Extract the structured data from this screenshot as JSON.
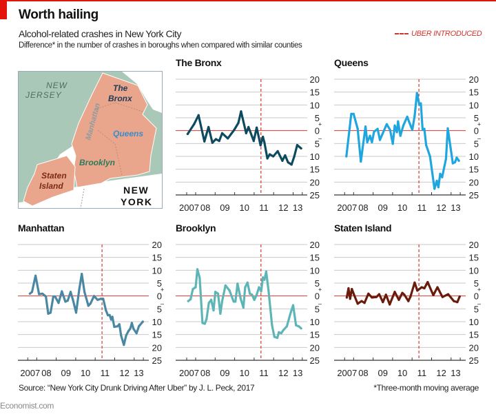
{
  "header": {
    "title": "Worth hailing",
    "subtitle": "Alcohol-related crashes in New York City",
    "description": "Difference* in the number of crashes in boroughs when compared with similar counties",
    "legend_label": "UBER INTRODUCED"
  },
  "map": {
    "new_jersey_1": "NEW",
    "new_jersey_2": "JERSEY",
    "bronx_1": "The",
    "bronx_2": "Bronx",
    "manhattan": "Manhattan",
    "queens": "Queens",
    "brooklyn": "Brooklyn",
    "staten_1": "Staten",
    "staten_2": "Island",
    "new_york_1": "NEW",
    "new_york_2": "YORK"
  },
  "footer": {
    "source": "Source: “New York City Drunk Driving After Uber” by J. L. Peck, 2017",
    "note": "*Three-month moving average",
    "brand": "Economist.com"
  },
  "colors": {
    "accent": "#e3120b",
    "uber_line": "#d9342b",
    "grid": "#c9c9c9"
  },
  "chart_data": [
    {
      "type": "line",
      "title": "The Bronx",
      "color": "#0e4a5f",
      "ylim": [
        -25,
        20
      ],
      "yticks": [
        20,
        15,
        10,
        5,
        0,
        -5,
        -10,
        -15,
        -20,
        -25
      ],
      "ytick_labels": [
        "20",
        "15",
        "10",
        "5",
        "0",
        "5",
        "10",
        "15",
        "20",
        "25"
      ],
      "xtick_labels": [
        "2007",
        "08",
        "09",
        "10",
        "11",
        "12",
        "13"
      ],
      "xlim": [
        2007.54,
        2013.47
      ],
      "uber_introduced": 2011.35,
      "points": [
        [
          2007.59,
          -1.3
        ],
        [
          2007.92,
          2.5
        ],
        [
          2008.15,
          6
        ],
        [
          2008.45,
          -4.2
        ],
        [
          2008.66,
          1.4
        ],
        [
          2008.86,
          -4.7
        ],
        [
          2009.04,
          -3.3
        ],
        [
          2009.21,
          -4
        ],
        [
          2009.36,
          -1
        ],
        [
          2009.65,
          -3
        ],
        [
          2009.98,
          0.3
        ],
        [
          2010.19,
          3
        ],
        [
          2010.33,
          7.5
        ],
        [
          2010.59,
          -1
        ],
        [
          2010.71,
          1.4
        ],
        [
          2010.98,
          -4
        ],
        [
          2011.13,
          1.2
        ],
        [
          2011.33,
          -5.7
        ],
        [
          2011.45,
          -2.4
        ],
        [
          2011.53,
          -4.7
        ],
        [
          2011.68,
          -10.8
        ],
        [
          2011.8,
          -9.2
        ],
        [
          2011.98,
          -10
        ],
        [
          2012.21,
          -8
        ],
        [
          2012.45,
          -11.7
        ],
        [
          2012.59,
          -9.6
        ],
        [
          2012.74,
          -12.3
        ],
        [
          2012.92,
          -13.2
        ],
        [
          2013.06,
          -10
        ],
        [
          2013.21,
          -5.6
        ],
        [
          2013.41,
          -6.9
        ]
      ]
    },
    {
      "type": "line",
      "title": "Queens",
      "color": "#1fa6de",
      "ylim": [
        -25,
        20
      ],
      "yticks": [
        20,
        15,
        10,
        5,
        0,
        -5,
        -10,
        -15,
        -20,
        -25
      ],
      "ytick_labels": [
        "20",
        "15",
        "10",
        "5",
        "0",
        "5",
        "10",
        "15",
        "20",
        "25"
      ],
      "xtick_labels": [
        "2007",
        "08",
        "09",
        "10",
        "11",
        "12",
        "13"
      ],
      "xlim": [
        2007.54,
        2013.47
      ],
      "uber_introduced": 2011.35,
      "points": [
        [
          2007.63,
          -10
        ],
        [
          2007.88,
          6.5
        ],
        [
          2008.0,
          6.5
        ],
        [
          2008.21,
          0.7
        ],
        [
          2008.37,
          -12
        ],
        [
          2008.61,
          1.6
        ],
        [
          2008.7,
          -4.5
        ],
        [
          2008.84,
          -2
        ],
        [
          2008.94,
          -4.5
        ],
        [
          2009.05,
          -0.4
        ],
        [
          2009.23,
          0.7
        ],
        [
          2009.35,
          -3.6
        ],
        [
          2009.7,
          2.5
        ],
        [
          2009.87,
          0.3
        ],
        [
          2010.01,
          -5.1
        ],
        [
          2010.11,
          2
        ],
        [
          2010.22,
          -0.6
        ],
        [
          2010.28,
          3.6
        ],
        [
          2010.4,
          -2
        ],
        [
          2010.55,
          2
        ],
        [
          2010.75,
          5.4
        ],
        [
          2010.87,
          3
        ],
        [
          2011.01,
          0.3
        ],
        [
          2011.13,
          5.7
        ],
        [
          2011.25,
          14.6
        ],
        [
          2011.37,
          10.1
        ],
        [
          2011.45,
          10.6
        ],
        [
          2011.54,
          0.3
        ],
        [
          2011.63,
          0.7
        ],
        [
          2011.72,
          -5.6
        ],
        [
          2011.92,
          -10
        ],
        [
          2012.15,
          -22.6
        ],
        [
          2012.27,
          -19.5
        ],
        [
          2012.35,
          -22
        ],
        [
          2012.44,
          -16.8
        ],
        [
          2012.54,
          -18.1
        ],
        [
          2012.74,
          -11
        ],
        [
          2012.83,
          0.9
        ],
        [
          2012.97,
          -6.5
        ],
        [
          2013.09,
          -12.7
        ],
        [
          2013.2,
          -12.3
        ],
        [
          2013.29,
          -10.5
        ],
        [
          2013.4,
          -11.7
        ]
      ]
    },
    {
      "type": "line",
      "title": "Manhattan",
      "color": "#4a87a2",
      "ylim": [
        -25,
        20
      ],
      "yticks": [
        20,
        15,
        10,
        5,
        0,
        -5,
        -10,
        -15,
        -20,
        -25
      ],
      "ytick_labels": [
        "20",
        "15",
        "10",
        "5",
        "0",
        "5",
        "10",
        "15",
        "20",
        "25"
      ],
      "xtick_labels": [
        "2007",
        "08",
        "09",
        "10",
        "11",
        "12",
        "13"
      ],
      "xlim": [
        2007.54,
        2013.47
      ],
      "uber_introduced": 2011.35,
      "points": [
        [
          2007.65,
          0.9
        ],
        [
          2007.76,
          1.6
        ],
        [
          2007.94,
          7.9
        ],
        [
          2008.12,
          0.7
        ],
        [
          2008.29,
          0.9
        ],
        [
          2008.47,
          -0.2
        ],
        [
          2008.59,
          -6.9
        ],
        [
          2008.71,
          -6.5
        ],
        [
          2008.85,
          -0.2
        ],
        [
          2008.94,
          -0.2
        ],
        [
          2009.12,
          -2.7
        ],
        [
          2009.29,
          1.8
        ],
        [
          2009.47,
          -2.2
        ],
        [
          2009.59,
          -1.8
        ],
        [
          2009.74,
          1.6
        ],
        [
          2009.86,
          -1.5
        ],
        [
          2010.02,
          -6.5
        ],
        [
          2010.18,
          2.5
        ],
        [
          2010.31,
          8.6
        ],
        [
          2010.45,
          1.6
        ],
        [
          2010.65,
          -3.8
        ],
        [
          2010.76,
          -2.9
        ],
        [
          2010.94,
          0
        ],
        [
          2011.12,
          -1.5
        ],
        [
          2011.29,
          -1.1
        ],
        [
          2011.41,
          -1.1
        ],
        [
          2011.55,
          -5.6
        ],
        [
          2011.65,
          -7.5
        ],
        [
          2011.74,
          -7.4
        ],
        [
          2011.82,
          -9.2
        ],
        [
          2011.88,
          -8.1
        ],
        [
          2011.98,
          -12
        ],
        [
          2012.14,
          -11.8
        ],
        [
          2012.24,
          -11
        ],
        [
          2012.33,
          -15.4
        ],
        [
          2012.47,
          -19
        ],
        [
          2012.59,
          -15.3
        ],
        [
          2012.71,
          -13.6
        ],
        [
          2012.8,
          -12.7
        ],
        [
          2012.88,
          -10.5
        ],
        [
          2012.96,
          -12.7
        ],
        [
          2013.12,
          -14.5
        ],
        [
          2013.24,
          -11.8
        ],
        [
          2013.44,
          -10
        ]
      ]
    },
    {
      "type": "line",
      "title": "Brooklyn",
      "color": "#5db5b6",
      "ylim": [
        -25,
        20
      ],
      "yticks": [
        20,
        15,
        10,
        5,
        0,
        -5,
        -10,
        -15,
        -20,
        -25
      ],
      "ytick_labels": [
        "20",
        "15",
        "10",
        "5",
        "0",
        "5",
        "10",
        "15",
        "20",
        "25"
      ],
      "xtick_labels": [
        "2007",
        "08",
        "09",
        "10",
        "11",
        "12",
        "13"
      ],
      "xlim": [
        2007.54,
        2013.47
      ],
      "uber_introduced": 2011.35,
      "points": [
        [
          2007.62,
          -2
        ],
        [
          2007.74,
          -1.3
        ],
        [
          2007.86,
          2.7
        ],
        [
          2008.0,
          3.4
        ],
        [
          2008.09,
          10.4
        ],
        [
          2008.21,
          7
        ],
        [
          2008.35,
          -10.5
        ],
        [
          2008.47,
          -10.8
        ],
        [
          2008.56,
          -9
        ],
        [
          2008.68,
          -2.7
        ],
        [
          2008.8,
          -1.5
        ],
        [
          2008.92,
          -5.6
        ],
        [
          2009.01,
          1.6
        ],
        [
          2009.15,
          0.9
        ],
        [
          2009.27,
          -6.9
        ],
        [
          2009.36,
          -2
        ],
        [
          2009.53,
          4.1
        ],
        [
          2009.74,
          2.1
        ],
        [
          2009.95,
          -2.2
        ],
        [
          2010.04,
          -2.2
        ],
        [
          2010.15,
          4.8
        ],
        [
          2010.31,
          -1.1
        ],
        [
          2010.45,
          -4.5
        ],
        [
          2010.54,
          3.4
        ],
        [
          2010.66,
          5.2
        ],
        [
          2010.78,
          0.9
        ],
        [
          2010.89,
          0.5
        ],
        [
          2011.01,
          -1.5
        ],
        [
          2011.13,
          0.5
        ],
        [
          2011.25,
          3.4
        ],
        [
          2011.36,
          1.8
        ],
        [
          2011.45,
          7.2
        ],
        [
          2011.53,
          6.3
        ],
        [
          2011.62,
          9.5
        ],
        [
          2011.74,
          2.1
        ],
        [
          2011.92,
          -11.4
        ],
        [
          2012.04,
          -15.9
        ],
        [
          2012.19,
          -16.3
        ],
        [
          2012.27,
          -14.1
        ],
        [
          2012.39,
          -14.5
        ],
        [
          2012.51,
          -13.2
        ],
        [
          2012.68,
          -11.8
        ],
        [
          2012.86,
          -6.9
        ],
        [
          2013.0,
          -3.6
        ],
        [
          2013.15,
          -11.4
        ],
        [
          2013.29,
          -11.8
        ],
        [
          2013.41,
          -12.6
        ]
      ]
    },
    {
      "type": "line",
      "title": "Staten Island",
      "color": "#6a1b0b",
      "ylim": [
        -25,
        20
      ],
      "yticks": [
        20,
        15,
        10,
        5,
        0,
        -5,
        -10,
        -15,
        -20,
        -25
      ],
      "ytick_labels": [
        "20",
        "15",
        "10",
        "5",
        "0",
        "5",
        "10",
        "15",
        "20",
        "25"
      ],
      "xtick_labels": [
        "2007",
        "08",
        "09",
        "10",
        "11",
        "12",
        "13"
      ],
      "xlim": [
        2007.54,
        2013.47
      ],
      "uber_introduced": 2011.35,
      "points": [
        [
          2007.65,
          -0.6
        ],
        [
          2007.74,
          3
        ],
        [
          2007.82,
          -1.1
        ],
        [
          2007.91,
          2.7
        ],
        [
          2008.02,
          0.5
        ],
        [
          2008.21,
          -3
        ],
        [
          2008.41,
          -2
        ],
        [
          2008.56,
          -2.7
        ],
        [
          2008.76,
          0.9
        ],
        [
          2008.94,
          -0.6
        ],
        [
          2009.17,
          -0.4
        ],
        [
          2009.31,
          0.7
        ],
        [
          2009.5,
          -2.4
        ],
        [
          2009.66,
          0.5
        ],
        [
          2009.85,
          -3.3
        ],
        [
          2010.11,
          1.6
        ],
        [
          2010.32,
          -1.5
        ],
        [
          2010.5,
          1.2
        ],
        [
          2010.6,
          0.5
        ],
        [
          2010.81,
          -2
        ],
        [
          2010.92,
          -0.2
        ],
        [
          2011.13,
          5.2
        ],
        [
          2011.27,
          2.1
        ],
        [
          2011.49,
          3.4
        ],
        [
          2011.63,
          3
        ],
        [
          2011.8,
          5.4
        ],
        [
          2012.09,
          0.3
        ],
        [
          2012.3,
          3.4
        ],
        [
          2012.56,
          -0.4
        ],
        [
          2012.85,
          0.7
        ],
        [
          2013.14,
          -2
        ],
        [
          2013.32,
          -2.4
        ],
        [
          2013.44,
          -0.2
        ]
      ]
    }
  ]
}
